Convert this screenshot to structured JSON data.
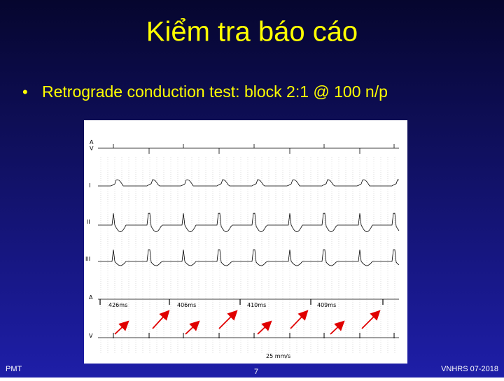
{
  "slide": {
    "title": "Kiểm tra báo cáo",
    "bullets": [
      "Retrograde conduction test: block 2:1 @ 100 n/p"
    ]
  },
  "figure": {
    "top_labels": [
      "A",
      "V"
    ],
    "leads": [
      "I",
      "II",
      "III",
      "A",
      "V"
    ],
    "intervals": [
      "426ms",
      "406ms",
      "410ms",
      "409ms"
    ],
    "speed": "25 mm/s"
  },
  "footer": {
    "left": "PMT",
    "page": "7",
    "right": "VNHRS 07-2018"
  }
}
